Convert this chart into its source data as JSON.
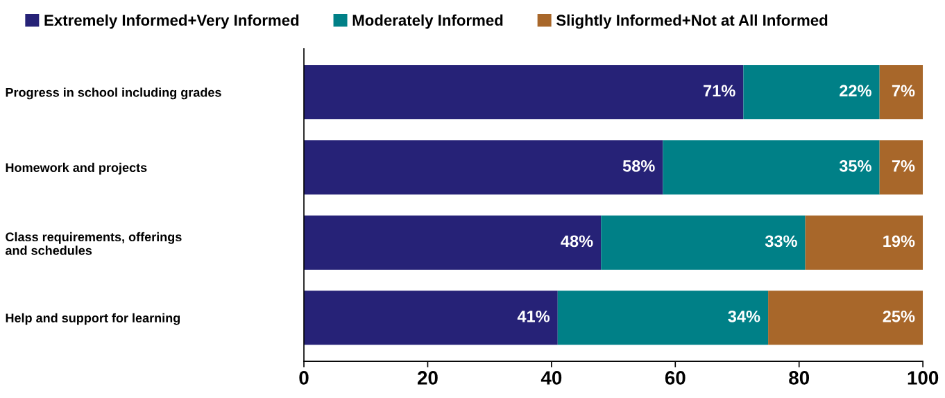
{
  "chart_data": {
    "type": "bar",
    "orientation": "horizontal",
    "stacked": true,
    "categories": [
      "Progress in school including grades",
      "Homework and projects",
      "Class requirements, offerings\nand schedules",
      "Help and support for learning"
    ],
    "series": [
      {
        "name": "Extremely Informed+Very Informed",
        "color": "#262277",
        "values": [
          71,
          58,
          48,
          41
        ],
        "value_labels": [
          "71%",
          "58%",
          "48%",
          "41%"
        ]
      },
      {
        "name": "Moderately Informed",
        "color": "#008087",
        "values": [
          22,
          35,
          33,
          34
        ],
        "value_labels": [
          "22%",
          "35%",
          "33%",
          "34%"
        ]
      },
      {
        "name": "Slightly Informed+Not at All Informed",
        "color": "#a8672a",
        "values": [
          7,
          7,
          19,
          25
        ],
        "value_labels": [
          "7%",
          "7%",
          "19%",
          "25%"
        ]
      }
    ],
    "xlim": [
      0,
      100
    ],
    "xticks": [
      0,
      20,
      40,
      60,
      80,
      100
    ],
    "grid": false,
    "legend": "top"
  }
}
